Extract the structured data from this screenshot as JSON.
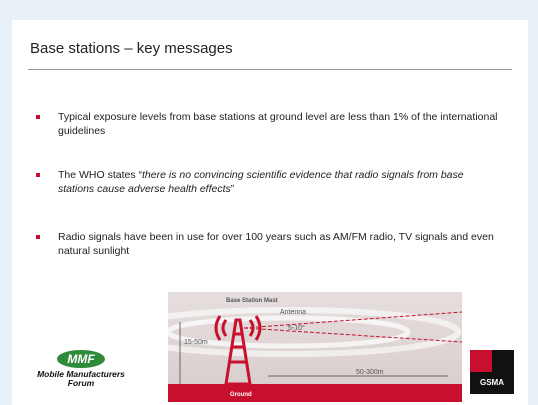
{
  "slide": {
    "title": "Base stations – key messages",
    "bullets": [
      {
        "text": "Typical exposure levels from base stations at ground level are less than 1% of the international guidelines"
      },
      {
        "lead": "The WHO states “",
        "quote": "there is no convincing scientific evidence that radio signals from base stations cause adverse health effects",
        "tail": "”"
      },
      {
        "text": "Radio signals have been in use for over 100 years such as AM/FM radio, TV signals and even natural sunlight"
      }
    ],
    "diagram": {
      "mast": "Base Station Mast",
      "antenna": "Antenna",
      "angle": "5-10°",
      "height": "15-50m",
      "distance": "50-300m",
      "ground": "Ground"
    },
    "logos": {
      "mmf": "MMF",
      "mmf_name": "Mobile Manufacturers Forum",
      "gsma": "GSMA"
    }
  }
}
